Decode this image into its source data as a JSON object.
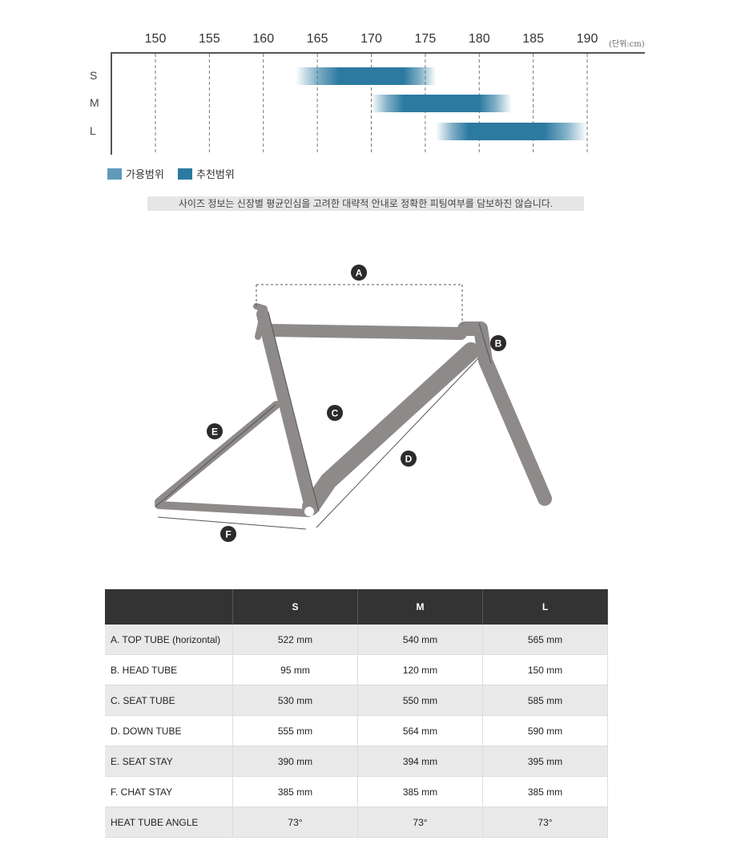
{
  "chart_data": {
    "type": "bar",
    "orientation": "horizontal-range",
    "x_ticks": [
      150,
      155,
      160,
      165,
      170,
      175,
      180,
      185,
      190
    ],
    "unit_label": "(단위:cm)",
    "xlim": [
      146,
      195
    ],
    "grid": true,
    "categories": [
      "S",
      "M",
      "L"
    ],
    "ranges": [
      {
        "size": "S",
        "usable": [
          163,
          176
        ],
        "recommended": [
          167,
          173
        ]
      },
      {
        "size": "M",
        "usable": [
          170,
          183
        ],
        "recommended": [
          173,
          180
        ]
      },
      {
        "size": "L",
        "usable": [
          176,
          190
        ],
        "recommended": [
          179,
          186
        ]
      }
    ],
    "legend": [
      {
        "label": "가용범위",
        "color": "#5f9ab8"
      },
      {
        "label": "추천범위",
        "color": "#2c7aa0"
      }
    ],
    "legend_placement": "bottom-left"
  },
  "note": "사이즈 정보는 신장별 평균인심을 고려한 대략적 안내로 정확한 피팅여부를 담보하진 않습니다.",
  "diagram": {
    "labels": [
      "A",
      "B",
      "C",
      "D",
      "E",
      "F"
    ],
    "frame_color": "#8e8a8a"
  },
  "table": {
    "headers": [
      "",
      "S",
      "M",
      "L"
    ],
    "rows": [
      [
        "A. TOP TUBE (horizontal)",
        "522 mm",
        "540 mm",
        "565 mm"
      ],
      [
        "B. HEAD TUBE",
        "95 mm",
        "120 mm",
        "150 mm"
      ],
      [
        "C. SEAT TUBE",
        "530 mm",
        "550 mm",
        "585 mm"
      ],
      [
        "D. DOWN TUBE",
        "555 mm",
        "564 mm",
        "590 mm"
      ],
      [
        "E. SEAT STAY",
        "390 mm",
        "394 mm",
        "395 mm"
      ],
      [
        "F. CHAT STAY",
        "385 mm",
        "385 mm",
        "385 mm"
      ],
      [
        "HEAT TUBE ANGLE",
        "73°",
        "73°",
        "73°"
      ]
    ]
  }
}
